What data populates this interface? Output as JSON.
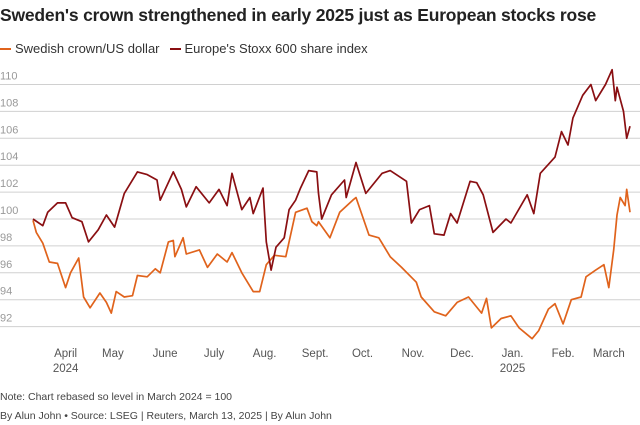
{
  "chart_data": {
    "type": "line",
    "title": "Sweden's crown strengthened in early 2025 just as European stocks rose",
    "xlabel": "",
    "ylabel": "",
    "x_units": "days since March 13, 2024",
    "xlim": [
      0,
      366
    ],
    "ylim": [
      90.5,
      111.5
    ],
    "grid": true,
    "legend_position": "top-left",
    "y_ticks": [
      92,
      94,
      96,
      98,
      100,
      102,
      104,
      106,
      108,
      110
    ],
    "x_ticks": [
      {
        "day": 20,
        "label": "April",
        "year": "2024"
      },
      {
        "day": 49,
        "label": "May",
        "year": ""
      },
      {
        "day": 81,
        "label": "June",
        "year": ""
      },
      {
        "day": 111,
        "label": "July",
        "year": ""
      },
      {
        "day": 142,
        "label": "Aug.",
        "year": ""
      },
      {
        "day": 173,
        "label": "Sept.",
        "year": ""
      },
      {
        "day": 202,
        "label": "Oct.",
        "year": ""
      },
      {
        "day": 233,
        "label": "Nov.",
        "year": ""
      },
      {
        "day": 263,
        "label": "Dec.",
        "year": ""
      },
      {
        "day": 294,
        "label": "Jan.",
        "year": "2025"
      },
      {
        "day": 325,
        "label": "Feb.",
        "year": ""
      },
      {
        "day": 353,
        "label": "March",
        "year": ""
      }
    ],
    "series": [
      {
        "name": "Swedish crown/US dollar",
        "color": "#e0631c",
        "x": [
          0,
          2,
          6,
          10,
          15,
          20,
          23,
          28,
          31,
          35,
          41,
          45,
          48,
          51,
          56,
          61,
          64,
          70,
          75,
          78,
          83,
          86,
          87,
          92,
          94,
          102,
          107,
          113,
          119,
          122,
          128,
          135,
          139,
          143,
          148,
          155,
          161,
          168,
          171,
          174,
          175,
          182,
          188,
          196,
          198,
          206,
          212,
          219,
          226,
          235,
          238,
          246,
          253,
          260,
          267,
          275,
          278,
          281,
          287,
          293,
          298,
          306,
          310,
          316,
          320,
          325,
          330,
          336,
          339,
          345,
          350,
          353,
          356,
          358,
          360,
          363,
          364,
          366
        ],
        "values": [
          99.9,
          99,
          98.2,
          96.8,
          96.7,
          94.9,
          96,
          97.1,
          94.2,
          93.4,
          94.5,
          93.8,
          93,
          94.6,
          94.2,
          94.3,
          95.8,
          95.7,
          96.3,
          96,
          98.3,
          98.4,
          97.2,
          98.6,
          97.4,
          97.7,
          96.4,
          97.4,
          96.8,
          97.5,
          96,
          94.6,
          94.6,
          96.6,
          97.3,
          97.2,
          100.5,
          100.8,
          99.8,
          99.5,
          99.8,
          98.6,
          100.5,
          101.4,
          101.6,
          98.8,
          98.6,
          97.2,
          96.4,
          95.3,
          94.2,
          93.1,
          92.8,
          93.8,
          94.2,
          93,
          94.1,
          91.9,
          92.6,
          92.8,
          91.9,
          91.1,
          91.7,
          93.3,
          93.7,
          92.2,
          94,
          94.2,
          95.7,
          96.2,
          96.6,
          94.9,
          97.7,
          100.3,
          101.6,
          101,
          102.2,
          100.5
        ]
      },
      {
        "name": "Europe's Stoxx 600 share index",
        "color": "#8a0f12",
        "x": [
          0,
          6,
          9,
          15,
          20,
          24,
          30,
          34,
          40,
          45,
          50,
          56,
          64,
          70,
          76,
          78,
          86,
          91,
          94,
          100,
          108,
          114,
          119,
          122,
          128,
          133,
          135,
          141,
          143,
          146,
          149,
          154,
          157,
          161,
          164,
          169,
          174,
          175,
          177,
          183,
          191,
          192,
          198,
          204,
          214,
          219,
          229,
          232,
          237,
          243,
          246,
          252,
          256,
          260,
          268,
          272,
          276,
          282,
          290,
          293,
          303,
          307,
          311,
          320,
          324,
          328,
          331,
          337,
          342,
          345,
          351,
          355,
          357,
          358,
          362,
          364,
          366
        ],
        "values": [
          100,
          99.5,
          100.5,
          101.2,
          101.2,
          100.1,
          99.8,
          98.3,
          99.2,
          100.3,
          99.4,
          101.9,
          103.5,
          103.3,
          102.9,
          101.4,
          103.5,
          102.2,
          100.9,
          102.4,
          101.2,
          102.2,
          101,
          103.4,
          100.7,
          101.6,
          100.4,
          102.3,
          98.3,
          96.2,
          97.9,
          98.6,
          100.7,
          101.4,
          102.3,
          103.6,
          103.5,
          101.9,
          100,
          101.8,
          102.9,
          101.6,
          104.2,
          101.9,
          103.4,
          103.6,
          102.8,
          99.7,
          100.7,
          101,
          98.9,
          98.8,
          100.4,
          99.7,
          102.8,
          102.7,
          101.8,
          99,
          100,
          99.7,
          101.8,
          100.4,
          103.4,
          104.6,
          106.5,
          105.5,
          107.5,
          109.2,
          110,
          108.8,
          110,
          111.1,
          108.8,
          109.8,
          108,
          106,
          106.9
        ]
      }
    ]
  },
  "footer": {
    "note": "Note: Chart rebased so level in March 2024 = 100",
    "byline": "By Alun John • Source: LSEG | Reuters, March 13, 2025 | By Alun John"
  }
}
